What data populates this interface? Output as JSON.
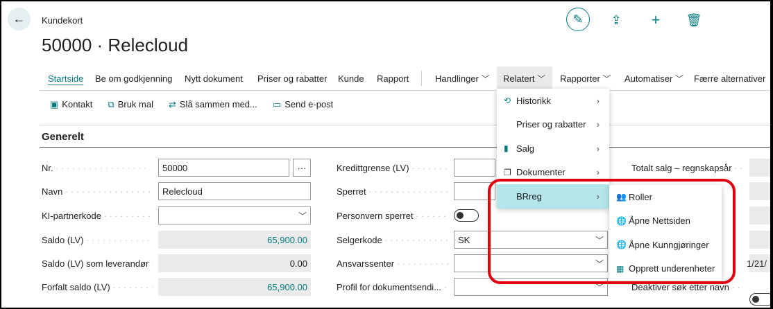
{
  "header": {
    "breadcrumb": "Kundekort",
    "title": "50000 · Relecloud",
    "icons": [
      "back-arrow-icon",
      "pencil-icon",
      "share-icon",
      "plus-icon",
      "trash-icon"
    ]
  },
  "nav": {
    "items": [
      "Startside",
      "Be om godkjenning",
      "Nytt dokument",
      "Priser og rabatter",
      "Kunde",
      "Rapport"
    ],
    "menus": [
      "Handlinger",
      "Relatert",
      "Rapporter",
      "Automatiser"
    ],
    "less": "Færre alternativer"
  },
  "actions": [
    {
      "icon": "contact-card-icon",
      "label": "Kontakt"
    },
    {
      "icon": "template-icon",
      "label": "Bruk mal"
    },
    {
      "icon": "merge-icon",
      "label": "Slå sammen med..."
    },
    {
      "icon": "email-icon",
      "label": "Send e-post"
    }
  ],
  "section": "Generelt",
  "col1": [
    {
      "label": "Nr.",
      "value": "50000"
    },
    {
      "label": "Navn",
      "value": "Relecloud"
    },
    {
      "label": "KI-partnerkode",
      "value": ""
    },
    {
      "label": "Saldo (LV)",
      "value": "65,900.00"
    },
    {
      "label": "Saldo (LV) som leverandør",
      "value": "0.00"
    },
    {
      "label": "Forfalt saldo (LV)",
      "value": "65,900.00"
    }
  ],
  "col2": [
    {
      "label": "Kredittgrense (LV)",
      "value": ""
    },
    {
      "label": "Sperret",
      "value": ""
    },
    {
      "label": "Personvern sperret",
      "value": "off"
    },
    {
      "label": "Selgerkode",
      "value": "SK"
    },
    {
      "label": "Ansvarssenter",
      "value": ""
    },
    {
      "label": "Profil for dokumentsendi...",
      "value": ""
    }
  ],
  "col3": [
    {
      "label": "Totalt salg – regnskapsår",
      "value": ""
    },
    {
      "label": "",
      "value": ""
    },
    {
      "label": "",
      "value": ""
    },
    {
      "label": "",
      "value": ""
    },
    {
      "label": "",
      "value": "1/21/"
    },
    {
      "label": "Deaktiver søk etter navn",
      "value": "off"
    }
  ],
  "related_menu": [
    {
      "icon": "history-icon",
      "label": "Historikk"
    },
    {
      "icon": "",
      "label": "Priser og rabatter"
    },
    {
      "icon": "sales-icon",
      "label": "Salg"
    },
    {
      "icon": "documents-icon",
      "label": "Dokumenter"
    },
    {
      "icon": "",
      "label": "BRreg"
    }
  ],
  "brreg_menu": [
    {
      "icon": "roles-icon",
      "label": "Roller"
    },
    {
      "icon": "globe-icon",
      "label": "Åpne Nettsiden"
    },
    {
      "icon": "globe-icon",
      "label": "Åpne Kunngjøringer"
    },
    {
      "icon": "org-icon",
      "label": "Opprett underenheter"
    }
  ],
  "colors": {
    "accent": "#00797f",
    "highlight": "#b2e6ea",
    "annotation": "#e00010"
  }
}
